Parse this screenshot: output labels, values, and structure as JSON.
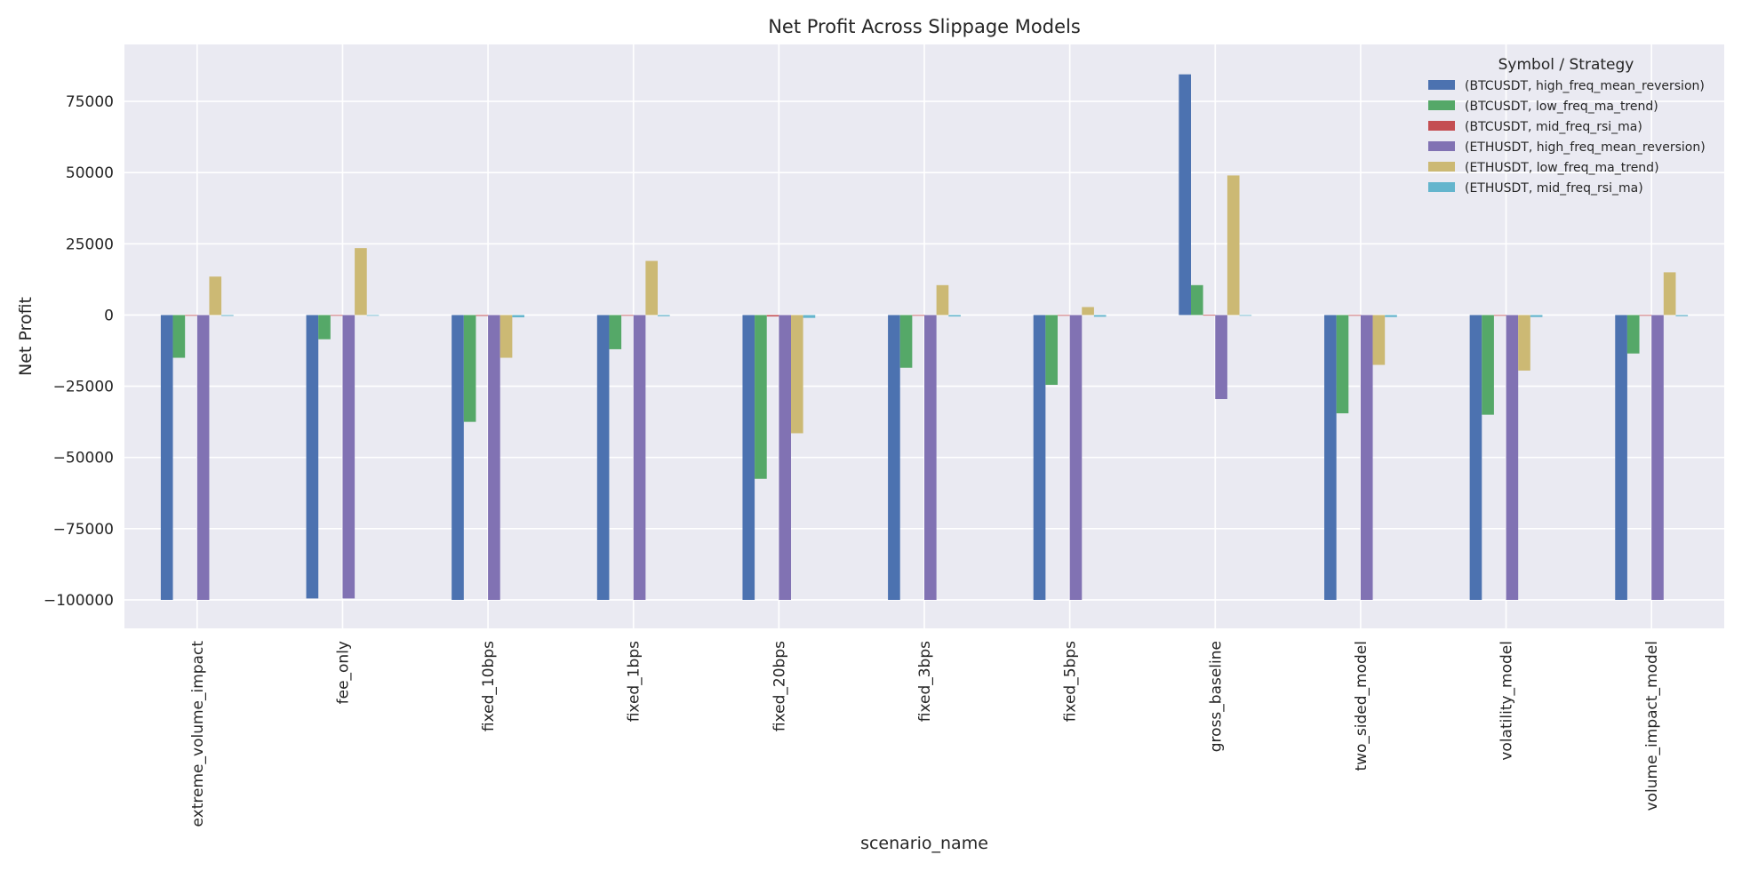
{
  "chart_data": {
    "type": "bar",
    "title": "Net Profit Across Slippage Models",
    "xlabel": "scenario_name",
    "ylabel": "Net Profit",
    "ylim": [
      -110000,
      95000
    ],
    "yticks": [
      75000,
      50000,
      25000,
      0,
      -25000,
      -50000,
      -75000,
      -100000
    ],
    "ytick_labels": [
      "75000",
      "50000",
      "25000",
      "0",
      "−25000",
      "−50000",
      "−75000",
      "−100000"
    ],
    "grid": true,
    "legend": {
      "title": "Symbol / Strategy",
      "placement": "top-right"
    },
    "categories": [
      "extreme_volume_impact",
      "fee_only",
      "fixed_10bps",
      "fixed_1bps",
      "fixed_20bps",
      "fixed_3bps",
      "fixed_5bps",
      "gross_baseline",
      "two_sided_model",
      "volatility_model",
      "volume_impact_model"
    ],
    "series": [
      {
        "name": "(BTCUSDT, high_freq_mean_reversion)",
        "color": "#4c72b0",
        "values": [
          -100000,
          -99500,
          -100000,
          -100000,
          -100000,
          -100000,
          -100000,
          84500,
          -100000,
          -100000,
          -100000
        ]
      },
      {
        "name": "(BTCUSDT, low_freq_ma_trend)",
        "color": "#55a868",
        "values": [
          -15000,
          -8500,
          -37500,
          -12000,
          -57500,
          -18500,
          -24500,
          10500,
          -34500,
          -35000,
          -13500
        ]
      },
      {
        "name": "(BTCUSDT, mid_freq_rsi_ma)",
        "color": "#c44e52",
        "values": [
          -100,
          -80,
          -300,
          -100,
          -500,
          -150,
          -200,
          50,
          -250,
          -200,
          -100
        ]
      },
      {
        "name": "(ETHUSDT, high_freq_mean_reversion)",
        "color": "#8172b3",
        "values": [
          -100000,
          -99500,
          -100000,
          -100000,
          -100000,
          -100000,
          -100000,
          -29500,
          -100000,
          -100000,
          -100000
        ]
      },
      {
        "name": "(ETHUSDT, low_freq_ma_trend)",
        "color": "#ccb974",
        "values": [
          13500,
          23500,
          -15000,
          19000,
          -41500,
          10500,
          2800,
          49000,
          -17500,
          -19500,
          15000
        ]
      },
      {
        "name": "(ETHUSDT, mid_freq_rsi_ma)",
        "color": "#64b5cd",
        "values": [
          -300,
          -250,
          -800,
          -400,
          -1000,
          -500,
          -600,
          0,
          -700,
          -700,
          -400
        ]
      }
    ]
  }
}
